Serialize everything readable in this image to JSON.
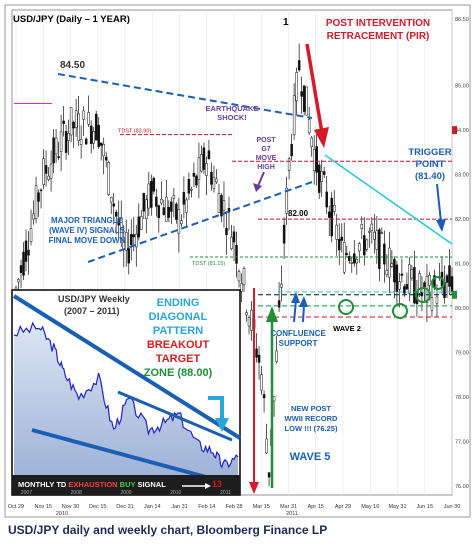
{
  "title": "USD/JPY (Daily – 1 YEAR)",
  "caption": "USD/JPY daily and weekly chart, Bloomberg Finance LP",
  "colors": {
    "candle_up": "#ffffff",
    "candle_down": "#111111",
    "weekly_line": "#1f22c8",
    "weekly_fill": "#b9c8e4",
    "trend_blue": "#1a5fb4",
    "cyan": "#28c9d9",
    "red_dash": "#c0152b",
    "green": "#1f8f3a",
    "purple": "#6a3d9a"
  },
  "chart_data": [
    {
      "type": "candlestick",
      "title": "USD/JPY (Daily – 1 YEAR)",
      "x_ticks": [
        "Oct 29",
        "Nov 15",
        "Nov 30",
        "Dec 15",
        "Dec 31",
        "Jan 14",
        "Jan 31",
        "Feb 14",
        "Feb 28",
        "Mar 15",
        "Mar 31",
        "Apr 15",
        "Apr 29",
        "May 16",
        "May 31",
        "Jun 15",
        "Jun 30"
      ],
      "x_year_labels": [
        "2010",
        "2011"
      ],
      "y_ticks": [
        86.5,
        85.0,
        84.0,
        83.0,
        82.0,
        81.0,
        80.0,
        79.0,
        78.0,
        77.0,
        76.0
      ],
      "y_tick_labels": [
        "86.50",
        "85.00",
        "84.00",
        "83.00",
        "82.00",
        "81.00",
        "80.00",
        "79.00",
        "78.00",
        "77.00",
        "76.00"
      ],
      "ylim": [
        75.8,
        86.7
      ],
      "close_path": [
        [
          "Oct 29",
          80.4
        ],
        [
          "Nov 15",
          83.0
        ],
        [
          "Nov 30",
          84.1
        ],
        [
          "Dec 15",
          84.1
        ],
        [
          "Dec 31",
          81.2
        ],
        [
          "Jan 14",
          82.6
        ],
        [
          "Jan 31",
          82.0
        ],
        [
          "Feb 14",
          83.4
        ],
        [
          "Feb 28",
          81.6
        ],
        [
          "Mar 15",
          78.6
        ],
        [
          "Mar 17",
          76.3
        ],
        [
          "Mar 31",
          83.1
        ],
        [
          "Apr 06",
          85.5
        ],
        [
          "Apr 15",
          83.3
        ],
        [
          "Apr 29",
          81.2
        ],
        [
          "May 16",
          81.6
        ],
        [
          "May 31",
          80.8
        ],
        [
          "Jun 15",
          80.3
        ],
        [
          "Jun 30",
          80.6
        ]
      ],
      "levels": [
        {
          "label": "TDST (83.90)",
          "value": 83.9
        },
        {
          "label": "82.00",
          "value": 82.0
        },
        {
          "label": "TDST (81.15)",
          "value": 81.15
        },
        {
          "label": "",
          "value": 80.3
        }
      ],
      "annotations": [
        "84.50",
        "1",
        "POST INTERVENTION",
        "RETRACEMENT (PIR)",
        "EARTHQUAKE",
        "SHOCK!",
        "POST",
        "G7",
        "MOVE",
        "HIGH",
        "TRIGGER",
        "POINT",
        "(81.40)",
        "MAJOR TRIANGLE",
        "(WAVE IV) SIGNALS",
        "FINAL MOVE DOWN",
        "CONFLUENCE",
        "SUPPORT",
        "WAVE 2",
        "WAVE 5",
        "NEW POST",
        "WWII RECORD",
        "LOW !!! (76.25)"
      ]
    },
    {
      "type": "area",
      "title": "USD/JPY Weekly",
      "subtitle": "(2007 – 2011)",
      "x_ticks": [
        "2007",
        "2008",
        "2009",
        "2010",
        "2011"
      ],
      "points": [
        [
          2007.0,
          121
        ],
        [
          2007.5,
          123
        ],
        [
          2007.8,
          116
        ],
        [
          2008.0,
          108
        ],
        [
          2008.3,
          100
        ],
        [
          2008.7,
          106
        ],
        [
          2009.0,
          89
        ],
        [
          2009.3,
          99
        ],
        [
          2009.7,
          89
        ],
        [
          2010.0,
          91
        ],
        [
          2010.3,
          94
        ],
        [
          2010.7,
          84
        ],
        [
          2011.0,
          82
        ],
        [
          2011.2,
          77
        ],
        [
          2011.5,
          80
        ]
      ],
      "ylim": [
        74,
        126
      ],
      "annotations": [
        "ENDING",
        "DIAGONAL",
        "PATTERN",
        "BREAKOUT",
        "TARGET",
        "ZONE (88.00)"
      ],
      "footer": {
        "prefix": "MONTHLY TD ",
        "exhaustion": "EXHAUSTION",
        "buy": " BUY",
        "suffix": " SIGNAL",
        "count": "13"
      }
    }
  ]
}
